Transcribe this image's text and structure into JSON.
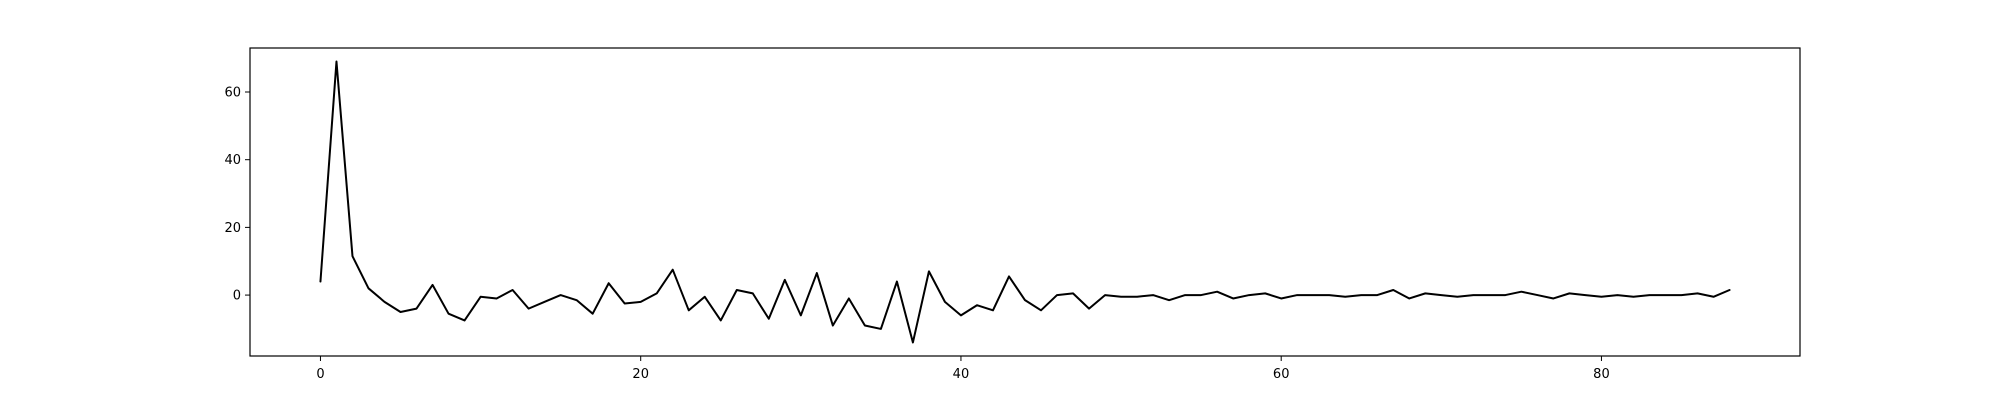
{
  "chart_data": {
    "type": "line",
    "title": "",
    "xlabel": "",
    "ylabel": "",
    "xlim": [
      -4.4,
      92.4
    ],
    "ylim": [
      -18,
      73
    ],
    "grid": false,
    "legend": "none",
    "line_color": "#000000",
    "x_ticks": [
      0,
      20,
      40,
      60,
      80
    ],
    "y_ticks": [
      0,
      20,
      40,
      60
    ],
    "x_tick_labels": [
      "0",
      "20",
      "40",
      "60",
      "80"
    ],
    "y_tick_labels": [
      "0",
      "20",
      "40",
      "60"
    ],
    "series": [
      {
        "values": [
          4.0,
          69.0,
          11.5,
          2.0,
          -2.0,
          -5.0,
          -4.0,
          3.0,
          -5.5,
          -7.5,
          -0.5,
          -1.0,
          1.5,
          -4.0,
          -2.0,
          0.0,
          -1.5,
          -5.5,
          3.5,
          -2.5,
          -2.0,
          0.5,
          7.5,
          -4.5,
          -0.5,
          -7.5,
          1.5,
          0.5,
          -7.0,
          4.5,
          -6.0,
          6.5,
          -9.0,
          -1.0,
          -9.0,
          -10.0,
          4.0,
          -14.0,
          7.0,
          -2.0,
          -6.0,
          -3.0,
          -4.5,
          5.5,
          -1.5,
          -4.5,
          0.0,
          0.5,
          -4.0,
          0.0,
          -0.5,
          -0.5,
          0.0,
          -1.5,
          0.0,
          0.0,
          1.0,
          -1.0,
          0.0,
          0.5,
          -1.0,
          0.0,
          0.0,
          0.0,
          -0.5,
          0.0,
          0.0,
          1.5,
          -1.0,
          0.5,
          0.0,
          -0.5,
          0.0,
          0.0,
          0.0,
          1.0,
          0.0,
          -1.0,
          0.5,
          0.0,
          -0.5,
          0.0,
          -0.5,
          0.0,
          0.0,
          0.0,
          0.5,
          -0.5,
          1.5
        ]
      }
    ]
  }
}
